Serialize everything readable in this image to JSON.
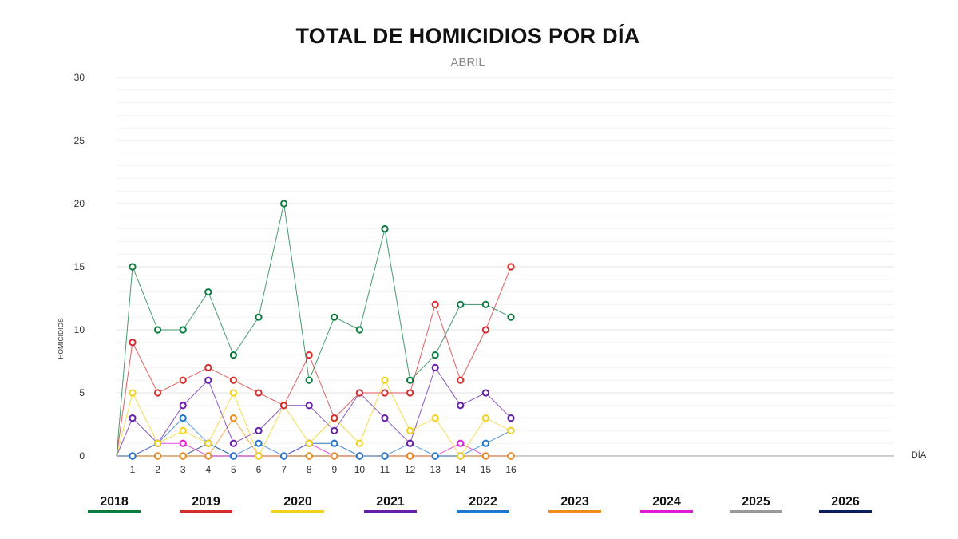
{
  "chart_data": {
    "type": "line",
    "title": "TOTAL DE HOMICIDIOS POR DÍA",
    "subtitle": "ABRIL",
    "xlabel": "DÍA",
    "ylabel": "HOMICIDIOS",
    "ylim": [
      0,
      30
    ],
    "yticks": [
      0,
      5,
      10,
      15,
      20,
      25,
      30
    ],
    "x": [
      1,
      2,
      3,
      4,
      5,
      6,
      7,
      8,
      9,
      10,
      11,
      12,
      13,
      14,
      15,
      16
    ],
    "grid": true,
    "legend_position": "bottom",
    "series": [
      {
        "name": "2018",
        "color": "#0a7a3d",
        "values": [
          15,
          10,
          10,
          13,
          8,
          11,
          20,
          6,
          11,
          10,
          18,
          6,
          8,
          12,
          12,
          11
        ]
      },
      {
        "name": "2019",
        "color": "#d62c2c",
        "values": [
          9,
          5,
          6,
          7,
          6,
          5,
          4,
          8,
          3,
          5,
          5,
          5,
          12,
          6,
          10,
          15
        ]
      },
      {
        "name": "2020",
        "color": "#f2d21b",
        "values": [
          5,
          1,
          2,
          1,
          5,
          0,
          4,
          1,
          3,
          1,
          6,
          2,
          3,
          0,
          3,
          2
        ]
      },
      {
        "name": "2021",
        "color": "#6420aa",
        "values": [
          3,
          1,
          4,
          6,
          1,
          2,
          4,
          4,
          2,
          5,
          3,
          1,
          7,
          4,
          5,
          3
        ]
      },
      {
        "name": "2022",
        "color": "#1f77d0",
        "values": [
          0,
          1,
          3,
          1,
          0,
          1,
          0,
          1,
          1,
          0,
          0,
          1,
          0,
          0,
          1,
          2
        ]
      },
      {
        "name": "2023",
        "color": "#f08c1a",
        "values": [
          0,
          0,
          0,
          0,
          3,
          0,
          0,
          0,
          0,
          0,
          0,
          0,
          0,
          0,
          0,
          0
        ]
      },
      {
        "name": "2024",
        "color": "#e01ad6",
        "values": [
          0,
          1,
          1,
          0,
          0,
          0,
          0,
          1,
          0,
          0,
          0,
          0,
          0,
          1,
          0,
          0
        ]
      },
      {
        "name": "2025",
        "color": "#9a9a9a",
        "values": [
          0,
          0,
          0,
          0,
          0,
          0,
          0,
          1,
          1,
          0,
          0,
          0,
          0,
          0,
          0,
          0
        ]
      },
      {
        "name": "2026",
        "color": "#0a1f5c",
        "values": [
          0,
          0,
          0,
          1,
          0,
          0,
          0,
          0,
          0,
          0,
          0,
          0,
          0,
          0,
          0,
          0
        ]
      }
    ]
  }
}
